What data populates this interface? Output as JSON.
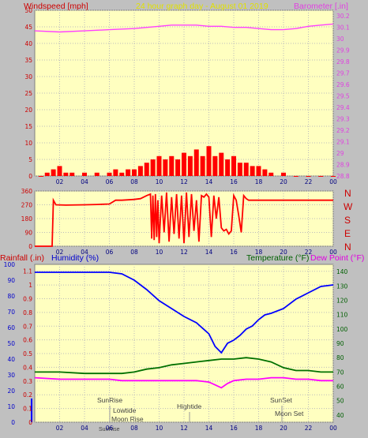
{
  "header": {
    "left_title": "Windspeed [mph]",
    "center_title": "24 hour graph day - August 01 2019",
    "right_title": "Barometer [.in]"
  },
  "mid": {
    "directions": [
      "N",
      "W",
      "S",
      "E",
      "N"
    ]
  },
  "bottom": {
    "rain_title": "Rainfall (.in)",
    "humidity_title": "Humidity (%)",
    "temp_title": "Temperature (°F)",
    "dew_title": "Dew Point (°F)"
  },
  "annotations": {
    "sunrise": "SunRise",
    "sunset": "SunSet",
    "lowtide": "Lowtide",
    "moonrise": "Moon Rise",
    "hightide": "Hightide",
    "moonset": "Moon Set",
    "sunrise_axis": "SunRise"
  },
  "colors": {
    "background": "#c0c0c0",
    "plot": "#ffffc0",
    "wind": "#ff0000",
    "gust_blue": "#0000ff",
    "gust_green": "#008000",
    "barometer": "#ff40ff",
    "humidity": "#0000ff",
    "temperature": "#007000",
    "dewpoint": "#ff00ff",
    "direction": "#ff0000"
  },
  "chart_data": [
    {
      "type": "bar",
      "x_tick_labels": [
        "02",
        "04",
        "06",
        "08",
        "10",
        "12",
        "14",
        "16",
        "18",
        "20",
        "22",
        "00"
      ],
      "y_left_ticks": [
        "0",
        "5",
        "10",
        "15",
        "20",
        "25",
        "30",
        "35",
        "40",
        "45",
        "50"
      ],
      "y_right_ticks": [
        "28.8",
        "28.9",
        "29",
        "29.1",
        "29.2",
        "29.3",
        "29.4",
        "29.5",
        "29.6",
        "29.7",
        "29.8",
        "29.9",
        "30",
        "30.1",
        "30.2"
      ],
      "xlim": [
        0,
        24
      ],
      "ylim_left": [
        0,
        50
      ],
      "ylim_right": [
        28.8,
        30.25
      ],
      "series": [
        {
          "name": "Windspeed",
          "axis": "left",
          "x": [
            0.5,
            1,
            1.5,
            2,
            2.5,
            3,
            4,
            5,
            6,
            6.5,
            7,
            7.5,
            8,
            8.5,
            9,
            9.5,
            10,
            10.5,
            11,
            11.5,
            12,
            12.5,
            13,
            13.5,
            14,
            14.5,
            15,
            15.5,
            16,
            16.5,
            17,
            17.5,
            18,
            18.5,
            19,
            20,
            21,
            22,
            23,
            24
          ],
          "y": [
            0,
            1,
            2,
            3,
            1,
            1,
            1,
            1,
            1,
            2,
            1,
            2,
            2,
            3,
            4,
            5,
            6,
            5,
            6,
            5,
            7,
            6,
            8,
            6,
            9,
            6,
            7,
            5,
            6,
            4,
            4,
            3,
            3,
            2,
            1,
            1,
            0,
            0,
            0,
            0
          ]
        },
        {
          "name": "Barometer",
          "axis": "right",
          "x": [
            0,
            2,
            4,
            6,
            8,
            10,
            11,
            12,
            13,
            14,
            15,
            16,
            17,
            18,
            19,
            20,
            21,
            22,
            23,
            24
          ],
          "y": [
            30.07,
            30.06,
            30.07,
            30.08,
            30.09,
            30.11,
            30.12,
            30.12,
            30.12,
            30.11,
            30.11,
            30.1,
            30.1,
            30.09,
            30.08,
            30.08,
            30.09,
            30.11,
            30.12,
            30.13
          ]
        }
      ]
    },
    {
      "type": "line",
      "x_tick_labels": [
        "02",
        "04",
        "06",
        "08",
        "10",
        "12",
        "14",
        "16",
        "18",
        "20",
        "22",
        "00"
      ],
      "y_left_ticks": [
        "0",
        "90",
        "180",
        "270",
        "360"
      ],
      "xlim": [
        0,
        24
      ],
      "ylim": [
        0,
        360
      ],
      "series": [
        {
          "name": "Wind Direction",
          "x": [
            0,
            1.4,
            1.5,
            1.7,
            2.5,
            4,
            5,
            6,
            6.5,
            7,
            8,
            8.5,
            9,
            9.3,
            9.4,
            9.5,
            9.6,
            9.7,
            9.8,
            9.9,
            10,
            10.2,
            10.4,
            10.6,
            10.8,
            11,
            11.2,
            11.4,
            11.6,
            11.8,
            12,
            12.2,
            12.4,
            12.6,
            12.8,
            13,
            13.2,
            13.4,
            13.6,
            13.8,
            14,
            14.2,
            14.4,
            14.6,
            14.8,
            15,
            15.2,
            15.4,
            15.6,
            15.8,
            16,
            16.2,
            16.4,
            16.6,
            16.8,
            17,
            17.2,
            17.4,
            17.6,
            18,
            20,
            22,
            24
          ],
          "y": [
            0,
            0,
            300,
            270,
            268,
            270,
            272,
            275,
            300,
            300,
            305,
            310,
            330,
            340,
            50,
            330,
            40,
            340,
            60,
            300,
            20,
            330,
            90,
            350,
            30,
            320,
            80,
            340,
            50,
            330,
            20,
            350,
            60,
            340,
            100,
            300,
            30,
            330,
            320,
            340,
            320,
            60,
            330,
            180,
            320,
            120,
            100,
            110,
            80,
            100,
            330,
            300,
            200,
            90,
            330,
            310,
            300,
            300,
            300,
            300,
            300,
            300,
            300
          ]
        }
      ]
    },
    {
      "type": "line",
      "x_tick_labels": [
        "02",
        "04",
        "06",
        "08",
        "10",
        "12",
        "14",
        "16",
        "18",
        "20",
        "22",
        "00"
      ],
      "y_left_ticks": [
        "0",
        "0.1",
        "0.2",
        "0.3",
        "0.4",
        "0.5",
        "0.6",
        "0.7",
        "0.8",
        "0.9",
        "1",
        "1.1"
      ],
      "y_humidity_ticks": [
        "0",
        "10",
        "20",
        "30",
        "40",
        "50",
        "60",
        "70",
        "80",
        "90",
        "100"
      ],
      "y_right_ticks": [
        "40",
        "50",
        "60",
        "70",
        "80",
        "90",
        "100",
        "110",
        "120",
        "130",
        "140"
      ],
      "xlim": [
        0,
        24
      ],
      "ylim_left": [
        0,
        1.15
      ],
      "ylim_humidity": [
        0,
        100
      ],
      "ylim_right": [
        35,
        145
      ],
      "series": [
        {
          "name": "Humidity",
          "axis": "humidity",
          "x": [
            0,
            2,
            4,
            6,
            7,
            8,
            9,
            10,
            11,
            12,
            13,
            14,
            14.5,
            15,
            15.5,
            16,
            16.5,
            17,
            17.5,
            18,
            18.5,
            19,
            20,
            21,
            22,
            23,
            24
          ],
          "y": [
            95,
            95,
            95,
            95,
            94,
            90,
            84,
            77,
            72,
            67,
            63,
            56,
            48,
            44,
            50,
            52,
            55,
            59,
            61,
            65,
            68,
            69,
            72,
            78,
            82,
            86,
            87
          ]
        },
        {
          "name": "Temperature",
          "axis": "right",
          "x": [
            0,
            2,
            4,
            6,
            7,
            8,
            9,
            10,
            11,
            12,
            13,
            14,
            15,
            16,
            17,
            18,
            19,
            20,
            21,
            22,
            23,
            24
          ],
          "y": [
            70,
            70,
            69,
            69,
            69,
            70,
            72,
            73,
            75,
            76,
            77,
            78,
            79,
            79,
            80,
            79,
            77,
            73,
            71,
            71,
            70,
            70
          ]
        },
        {
          "name": "Dew Point",
          "axis": "right",
          "x": [
            0,
            2,
            4,
            6,
            7,
            8,
            9,
            10,
            11,
            12,
            13,
            14,
            14.5,
            15,
            15.5,
            16,
            17,
            18,
            19,
            20,
            21,
            22,
            23,
            24
          ],
          "y": [
            66,
            65,
            65,
            65,
            64,
            64,
            64,
            64,
            64,
            64,
            64,
            63,
            61,
            59,
            62,
            64,
            65,
            65,
            66,
            66,
            65,
            65,
            64,
            64
          ]
        }
      ]
    }
  ]
}
